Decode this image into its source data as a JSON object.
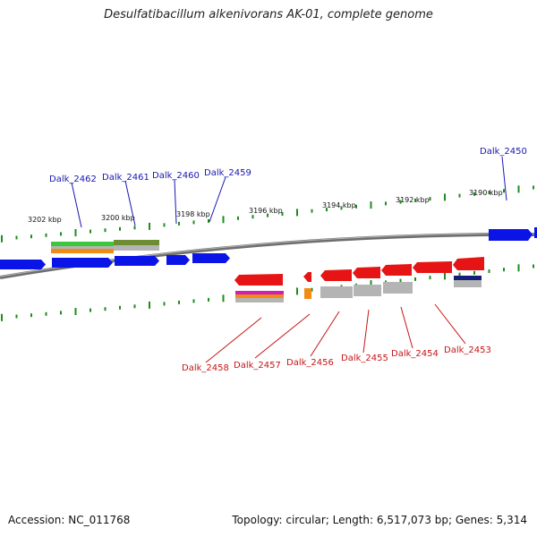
{
  "title": "Desulfatibacillum alkenivorans AK-01, complete genome",
  "footer": {
    "accession": "Accession: NC_011768",
    "info": "Topology: circular; Length: 6,517,073 bp; Genes: 5,314"
  },
  "scale_labels": [
    "3202 kbp",
    "3200 kbp",
    "3198 kbp",
    "3196 kbp",
    "3194 kbp",
    "3192 kbp",
    "3190 kbp"
  ],
  "forward_gene_labels": [
    "Dalk_2462",
    "Dalk_2461",
    "Dalk_2460",
    "Dalk_2459",
    "Dalk_2450"
  ],
  "reverse_gene_labels": [
    "Dalk_2458",
    "Dalk_2457",
    "Dalk_2456",
    "Dalk_2455",
    "Dalk_2454",
    "Dalk_2453"
  ],
  "colors": {
    "forward_gene": "#0a14e6",
    "reverse_gene": "#e61414",
    "forward_label": "#1616b4",
    "reverse_label": "#c81414",
    "tick": "#1e8c1e",
    "backbone": "#7a7a7a",
    "feature_grey": "#b4b4b4",
    "feature_green": "#3cc83c",
    "feature_olive": "#6e8c32",
    "feature_orange": "#f08c14",
    "feature_navy": "#141e78",
    "feature_magenta": "#d21eb4"
  }
}
